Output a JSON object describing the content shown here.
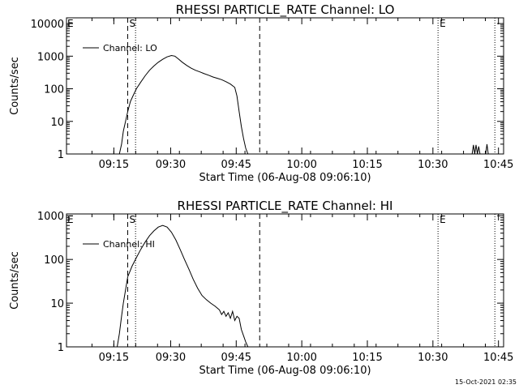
{
  "footer": {
    "timestamp": "15-Oct-2021 02:35"
  },
  "chart_data": [
    {
      "type": "line",
      "title": "RHESSI PARTICLE_RATE Channel: LO",
      "xlabel": "Start Time (06-Aug-08 09:06:10)",
      "ylabel": "Counts/sec",
      "x_unit": "minutes after 09:06:10",
      "xlim": [
        0,
        100
      ],
      "ylim": [
        1,
        15000
      ],
      "yscale": "log",
      "x_ticks": [
        {
          "x": 10.83,
          "label": "09:15"
        },
        {
          "x": 23.83,
          "label": "09:30"
        },
        {
          "x": 38.83,
          "label": "09:45"
        },
        {
          "x": 53.83,
          "label": "10:00"
        },
        {
          "x": 68.83,
          "label": "10:15"
        },
        {
          "x": 83.83,
          "label": "10:30"
        },
        {
          "x": 98.83,
          "label": "10:45"
        }
      ],
      "y_ticks": [
        {
          "y": 1,
          "label": "1"
        },
        {
          "y": 10,
          "label": "10"
        },
        {
          "y": 100,
          "label": "100"
        },
        {
          "y": 1000,
          "label": "1000"
        },
        {
          "y": 10000,
          "label": "10000"
        }
      ],
      "legend": {
        "label": "Channel: LO",
        "position": "top-left"
      },
      "markers": [
        {
          "x": 14.0,
          "style": "dashed",
          "label": "S"
        },
        {
          "x": 15.8,
          "style": "dotted",
          "label": ""
        },
        {
          "x": 44.2,
          "style": "dashed",
          "label": ""
        },
        {
          "x": 85.0,
          "style": "dotted",
          "label": "E"
        },
        {
          "x": 98.0,
          "style": "dotted",
          "label": ""
        }
      ],
      "corner_label": "E",
      "series": [
        {
          "name": "Channel: LO",
          "x": [
            12.1,
            12.6,
            13.0,
            13.5,
            14.0,
            14.6,
            15.2,
            16.0,
            17.0,
            18.0,
            19.0,
            20.0,
            21.0,
            22.0,
            23.0,
            24.0,
            24.8,
            25.5,
            26.5,
            27.5,
            28.5,
            29.5,
            30.5,
            31.5,
            32.5,
            33.5,
            34.5,
            35.5,
            36.5,
            37.5,
            38.5,
            39.0,
            39.5,
            40.0,
            40.5,
            41.0,
            41.5
          ],
          "y": [
            1,
            2,
            5,
            10,
            20,
            40,
            60,
            100,
            160,
            250,
            370,
            500,
            650,
            800,
            950,
            1050,
            1000,
            850,
            650,
            520,
            430,
            370,
            330,
            290,
            260,
            230,
            210,
            190,
            165,
            140,
            110,
            60,
            20,
            7,
            3,
            1.5,
            1
          ]
        },
        {
          "name": "",
          "x": [
            92.8,
            93.1,
            93.4,
            93.7,
            94.0,
            94.3,
            94.6,
            95.9,
            96.2,
            96.5
          ],
          "y": [
            1,
            1.9,
            1,
            1.9,
            1,
            1.7,
            1,
            1,
            2.0,
            1
          ]
        }
      ]
    },
    {
      "type": "line",
      "title": "RHESSI PARTICLE_RATE Channel: HI",
      "xlabel": "Start Time (06-Aug-08 09:06:10)",
      "ylabel": "Counts/sec",
      "x_unit": "minutes after 09:06:10",
      "xlim": [
        0,
        100
      ],
      "ylim": [
        1,
        1100
      ],
      "yscale": "log",
      "x_ticks": [
        {
          "x": 10.83,
          "label": "09:15"
        },
        {
          "x": 23.83,
          "label": "09:30"
        },
        {
          "x": 38.83,
          "label": "09:45"
        },
        {
          "x": 53.83,
          "label": "10:00"
        },
        {
          "x": 68.83,
          "label": "10:15"
        },
        {
          "x": 83.83,
          "label": "10:30"
        },
        {
          "x": 98.83,
          "label": "10:45"
        }
      ],
      "y_ticks": [
        {
          "y": 1,
          "label": "1"
        },
        {
          "y": 10,
          "label": "10"
        },
        {
          "y": 100,
          "label": "100"
        },
        {
          "y": 1000,
          "label": "1000"
        }
      ],
      "legend": {
        "label": "Channel: HI",
        "position": "top-left"
      },
      "markers": [
        {
          "x": 14.0,
          "style": "dashed",
          "label": "S"
        },
        {
          "x": 15.8,
          "style": "dotted",
          "label": ""
        },
        {
          "x": 44.2,
          "style": "dashed",
          "label": ""
        },
        {
          "x": 85.0,
          "style": "dotted",
          "label": "E"
        },
        {
          "x": 98.0,
          "style": "dotted",
          "label": ""
        }
      ],
      "corner_label": "E",
      "series": [
        {
          "name": "Channel: HI",
          "x": [
            11.6,
            12.1,
            12.6,
            13.0,
            13.5,
            14.0,
            15.0,
            16.0,
            17.0,
            18.0,
            19.0,
            20.0,
            21.0,
            22.0,
            23.0,
            24.0,
            25.0,
            26.0,
            27.0,
            28.0,
            29.0,
            30.0,
            31.0,
            32.0,
            33.0,
            34.0,
            35.0,
            35.5,
            36.0,
            36.5,
            37.0,
            37.5,
            38.0,
            38.5,
            39.0,
            39.5,
            40.0,
            40.5,
            41.0,
            41.5
          ],
          "y": [
            1,
            2,
            5,
            10,
            20,
            40,
            70,
            110,
            170,
            250,
            350,
            450,
            550,
            600,
            550,
            420,
            280,
            170,
            100,
            60,
            35,
            22,
            15,
            12,
            10,
            8.5,
            7,
            5.5,
            6.5,
            5,
            6,
            4.5,
            6.5,
            4,
            5,
            4.5,
            2.5,
            1.8,
            1.3,
            1
          ]
        }
      ]
    }
  ]
}
